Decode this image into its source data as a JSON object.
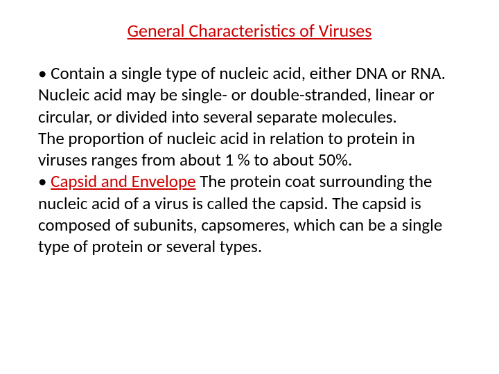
{
  "title": {
    "text": "General Characteristics of Viruses",
    "color": "#cc0000"
  },
  "bullets": [
    {
      "marker": "•  ",
      "text": "Contain a single type of nucleic acid, either DNA or RNA. Nucleic acid may be single- or double-stranded, linear or circular, or divided into several separate molecules."
    }
  ],
  "paragraph1": "The proportion of nucleic acid in relation to protein in viruses ranges from about 1 % to about 50%.",
  "bullet2": {
    "marker": "•  ",
    "heading": "Capsid and Envelope",
    "text": " The protein coat surrounding the nucleic acid of a virus is called the capsid. The capsid is composed of subunits, capsomeres, which can be a single type of protein or several types."
  },
  "colors": {
    "title_color": "#cc0000",
    "body_color": "#000000",
    "heading_color": "#cc0000",
    "background": "#ffffff"
  }
}
